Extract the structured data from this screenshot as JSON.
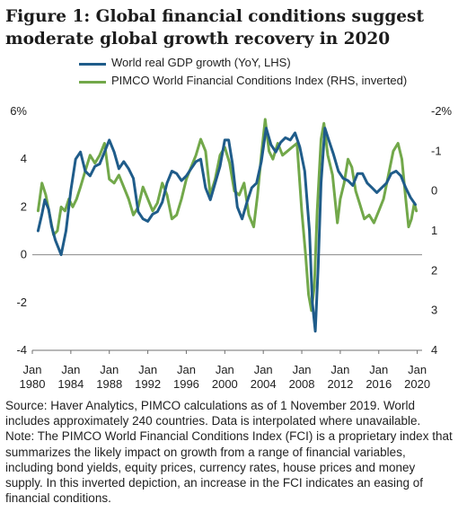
{
  "title": "Figure 1: Global financial conditions suggest moderate global growth recovery in 2020",
  "note": "Source: Haver Analytics, PIMCO calculations as of 1 November 2019. World includes approximately 240 countries. Data is interpolated where unavailable. Note: The PIMCO World Financial Conditions Index (FCI) is a proprietary index that summarizes the likely impact on growth from a range of financial variables, including bond yields, equity prices, currency rates, house prices and money supply. In this inverted depiction, an increase in the FCI indicates an easing of financial conditions.",
  "chart_data": {
    "type": "line",
    "series": [
      {
        "name": "World real GDP growth (YoY, LHS)",
        "axis": "left",
        "color": "#1f5c8a",
        "points": [
          [
            1980.6,
            1.0
          ],
          [
            1981.0,
            1.7
          ],
          [
            1981.3,
            2.3
          ],
          [
            1981.7,
            1.9
          ],
          [
            1982.0,
            1.2
          ],
          [
            1982.4,
            0.6
          ],
          [
            1982.7,
            0.3
          ],
          [
            1983.0,
            0.0
          ],
          [
            1983.5,
            1.0
          ],
          [
            1984.0,
            2.7
          ],
          [
            1984.5,
            4.0
          ],
          [
            1985.0,
            4.3
          ],
          [
            1985.5,
            3.5
          ],
          [
            1986.0,
            3.3
          ],
          [
            1986.5,
            3.7
          ],
          [
            1987.0,
            3.8
          ],
          [
            1987.5,
            4.3
          ],
          [
            1988.0,
            4.8
          ],
          [
            1988.5,
            4.3
          ],
          [
            1989.0,
            3.6
          ],
          [
            1989.5,
            3.9
          ],
          [
            1990.0,
            3.6
          ],
          [
            1990.5,
            3.2
          ],
          [
            1991.0,
            1.8
          ],
          [
            1991.5,
            1.5
          ],
          [
            1992.0,
            1.4
          ],
          [
            1992.5,
            1.7
          ],
          [
            1993.0,
            1.8
          ],
          [
            1993.5,
            2.2
          ],
          [
            1994.0,
            3.0
          ],
          [
            1994.5,
            3.5
          ],
          [
            1995.0,
            3.4
          ],
          [
            1995.5,
            3.1
          ],
          [
            1996.0,
            3.3
          ],
          [
            1996.5,
            3.6
          ],
          [
            1997.0,
            3.9
          ],
          [
            1997.5,
            4.0
          ],
          [
            1998.0,
            2.8
          ],
          [
            1998.5,
            2.3
          ],
          [
            1999.0,
            3.0
          ],
          [
            1999.5,
            3.7
          ],
          [
            2000.0,
            4.8
          ],
          [
            2000.4,
            4.8
          ],
          [
            2000.8,
            3.8
          ],
          [
            2001.3,
            2.0
          ],
          [
            2001.8,
            1.5
          ],
          [
            2002.3,
            2.2
          ],
          [
            2002.8,
            2.8
          ],
          [
            2003.3,
            3.0
          ],
          [
            2003.8,
            3.9
          ],
          [
            2004.3,
            5.3
          ],
          [
            2004.8,
            4.6
          ],
          [
            2005.3,
            4.3
          ],
          [
            2005.8,
            4.7
          ],
          [
            2006.3,
            4.9
          ],
          [
            2006.8,
            4.8
          ],
          [
            2007.3,
            5.1
          ],
          [
            2007.8,
            4.5
          ],
          [
            2008.3,
            3.5
          ],
          [
            2008.8,
            1.0
          ],
          [
            2009.1,
            -2.0
          ],
          [
            2009.4,
            -3.2
          ],
          [
            2009.7,
            -0.5
          ],
          [
            2010.0,
            3.0
          ],
          [
            2010.4,
            5.3
          ],
          [
            2010.8,
            4.8
          ],
          [
            2011.3,
            4.2
          ],
          [
            2011.8,
            3.5
          ],
          [
            2012.3,
            3.2
          ],
          [
            2012.8,
            3.1
          ],
          [
            2013.3,
            2.9
          ],
          [
            2013.8,
            3.4
          ],
          [
            2014.3,
            3.4
          ],
          [
            2014.8,
            3.0
          ],
          [
            2015.3,
            2.8
          ],
          [
            2015.8,
            2.6
          ],
          [
            2016.3,
            2.8
          ],
          [
            2016.8,
            3.0
          ],
          [
            2017.3,
            3.4
          ],
          [
            2017.8,
            3.5
          ],
          [
            2018.3,
            3.3
          ],
          [
            2018.8,
            2.8
          ],
          [
            2019.3,
            2.4
          ],
          [
            2019.8,
            2.1
          ]
        ]
      },
      {
        "name": "PIMCO World Financial Conditions Index (RHS, inverted)",
        "axis": "right",
        "color": "#72a84a",
        "points": [
          [
            1980.6,
            0.5
          ],
          [
            1981.0,
            -0.2
          ],
          [
            1981.4,
            0.1
          ],
          [
            1981.8,
            0.6
          ],
          [
            1982.2,
            1.1
          ],
          [
            1982.6,
            1.0
          ],
          [
            1983.0,
            0.4
          ],
          [
            1983.4,
            0.5
          ],
          [
            1983.8,
            0.2
          ],
          [
            1984.2,
            0.4
          ],
          [
            1984.6,
            0.2
          ],
          [
            1985.0,
            -0.1
          ],
          [
            1985.5,
            -0.5
          ],
          [
            1986.0,
            -0.9
          ],
          [
            1986.5,
            -0.7
          ],
          [
            1987.0,
            -0.9
          ],
          [
            1987.5,
            -1.2
          ],
          [
            1988.0,
            -0.3
          ],
          [
            1988.5,
            -0.2
          ],
          [
            1989.0,
            -0.4
          ],
          [
            1989.5,
            -0.1
          ],
          [
            1990.0,
            0.2
          ],
          [
            1990.5,
            0.6
          ],
          [
            1991.0,
            0.4
          ],
          [
            1991.5,
            -0.1
          ],
          [
            1992.0,
            0.2
          ],
          [
            1992.5,
            0.5
          ],
          [
            1993.0,
            0.3
          ],
          [
            1993.5,
            -0.2
          ],
          [
            1994.0,
            0.1
          ],
          [
            1994.5,
            0.7
          ],
          [
            1995.0,
            0.6
          ],
          [
            1995.5,
            0.2
          ],
          [
            1996.0,
            -0.3
          ],
          [
            1996.5,
            -0.6
          ],
          [
            1997.0,
            -0.9
          ],
          [
            1997.5,
            -1.3
          ],
          [
            1998.0,
            -1.0
          ],
          [
            1998.5,
            0.1
          ],
          [
            1999.0,
            -0.3
          ],
          [
            1999.5,
            -0.9
          ],
          [
            2000.0,
            -1.1
          ],
          [
            2000.5,
            -0.7
          ],
          [
            2001.0,
            0.0
          ],
          [
            2001.5,
            0.1
          ],
          [
            2002.0,
            -0.2
          ],
          [
            2002.5,
            0.6
          ],
          [
            2003.0,
            0.9
          ],
          [
            2003.4,
            0.1
          ],
          [
            2003.8,
            -0.9
          ],
          [
            2004.2,
            -1.8
          ],
          [
            2004.6,
            -1.0
          ],
          [
            2005.0,
            -0.8
          ],
          [
            2005.5,
            -1.2
          ],
          [
            2006.0,
            -0.9
          ],
          [
            2006.5,
            -1.0
          ],
          [
            2007.0,
            -1.1
          ],
          [
            2007.5,
            -1.2
          ],
          [
            2008.0,
            0.5
          ],
          [
            2008.4,
            1.6
          ],
          [
            2008.7,
            2.6
          ],
          [
            2009.0,
            3.0
          ],
          [
            2009.3,
            2.4
          ],
          [
            2009.6,
            0.5
          ],
          [
            2010.0,
            -1.3
          ],
          [
            2010.3,
            -1.7
          ],
          [
            2010.7,
            -0.9
          ],
          [
            2011.2,
            -0.4
          ],
          [
            2011.7,
            0.8
          ],
          [
            2012.0,
            0.2
          ],
          [
            2012.4,
            -0.2
          ],
          [
            2012.8,
            -0.8
          ],
          [
            2013.2,
            -0.6
          ],
          [
            2013.6,
            0.0
          ],
          [
            2014.0,
            0.3
          ],
          [
            2014.5,
            0.7
          ],
          [
            2015.0,
            0.6
          ],
          [
            2015.5,
            0.8
          ],
          [
            2016.0,
            0.5
          ],
          [
            2016.5,
            0.2
          ],
          [
            2017.0,
            -0.4
          ],
          [
            2017.5,
            -1.0
          ],
          [
            2018.0,
            -1.2
          ],
          [
            2018.4,
            -0.8
          ],
          [
            2018.8,
            0.2
          ],
          [
            2019.1,
            0.9
          ],
          [
            2019.4,
            0.7
          ],
          [
            2019.7,
            0.3
          ],
          [
            2019.9,
            0.5
          ]
        ]
      }
    ],
    "y_left": {
      "min": -4,
      "max": 6,
      "ticks": [
        -4,
        -2,
        0,
        2,
        4,
        6
      ],
      "tick_labels": [
        "-4",
        "-2",
        "0",
        "2",
        "4",
        "6%"
      ]
    },
    "y_right": {
      "min": -2,
      "max": 4,
      "inverted": true,
      "ticks": [
        -2,
        -1,
        0,
        1,
        2,
        3,
        4
      ],
      "tick_labels": [
        "-2%",
        "-1",
        "0",
        "1",
        "2",
        "3",
        "4"
      ]
    },
    "x_axis": {
      "min": 1980,
      "max": 2020.5,
      "ticks": [
        1980,
        1984,
        1988,
        1992,
        1996,
        2000,
        2004,
        2008,
        2012,
        2016,
        2020
      ],
      "tick_labels": [
        [
          "Jan",
          "1980"
        ],
        [
          "Jan",
          "1984"
        ],
        [
          "Jan",
          "1988"
        ],
        [
          "Jan",
          "1992"
        ],
        [
          "Jan",
          "1996"
        ],
        [
          "Jan",
          "2000"
        ],
        [
          "Jan",
          "2004"
        ],
        [
          "Jan",
          "2008"
        ],
        [
          "Jan",
          "2012"
        ],
        [
          "Jan",
          "2016"
        ],
        [
          "Jan",
          "2020"
        ]
      ]
    },
    "grid": false,
    "legend": "top-left"
  }
}
